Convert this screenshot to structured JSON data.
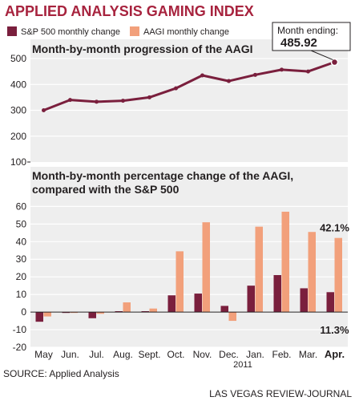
{
  "title": "APPLIED ANALYSIS GAMING INDEX",
  "legend": {
    "sp500": "S&P 500 monthly change",
    "aagi": "AAGI monthly change"
  },
  "colors": {
    "title": "#a7233e",
    "sp500": "#7a1f3d",
    "aagi": "#f2a07b",
    "line": "#7a1f3d",
    "panel_bg": "#eeeeee",
    "grid": "#ffffff"
  },
  "callout": {
    "label": "Month ending:",
    "value": "485.92"
  },
  "source": "SOURCE: Applied Analysis",
  "credit": "LAS VEGAS REVIEW-JOURNAL",
  "year_label": "2011",
  "chart_data": [
    {
      "type": "line",
      "title": "Month-by-month progression of the AAGI",
      "categories": [
        "May",
        "Jun.",
        "Jul.",
        "Aug.",
        "Sept.",
        "Oct.",
        "Nov.",
        "Dec.",
        "Jan.",
        "Feb.",
        "Mar.",
        "Apr."
      ],
      "series": [
        {
          "name": "AAGI",
          "values": [
            300,
            340,
            333,
            337,
            350,
            385,
            435,
            413,
            437,
            457,
            450,
            485.92
          ]
        }
      ],
      "ylim": [
        100,
        500
      ],
      "yticks": [
        100,
        200,
        300,
        400,
        500
      ],
      "grid": true
    },
    {
      "type": "bar",
      "title": "Month-by-month percentage change of the AAGI, compared with the S&P 500",
      "categories": [
        "May",
        "Jun.",
        "Jul.",
        "Aug.",
        "Sept.",
        "Oct.",
        "Nov.",
        "Dec.",
        "Jan.",
        "Feb.",
        "Mar.",
        "Apr."
      ],
      "series": [
        {
          "name": "S&P 500 monthly change",
          "values": [
            -5.5,
            -0.5,
            -3.5,
            0.5,
            0.5,
            9.5,
            10.5,
            3.5,
            15.0,
            21.0,
            13.5,
            11.3
          ]
        },
        {
          "name": "AAGI monthly change",
          "values": [
            -2.5,
            -0.5,
            -1.0,
            5.5,
            2.0,
            34.5,
            51.0,
            -5.0,
            48.5,
            57.0,
            45.5,
            42.1
          ]
        }
      ],
      "ylim": [
        -20,
        62
      ],
      "yticks": [
        -20,
        -10,
        0,
        10,
        20,
        30,
        40,
        50,
        60
      ],
      "grid": true,
      "annotations": [
        {
          "text": "42.1%",
          "category": "Apr.",
          "series": "AAGI monthly change"
        },
        {
          "text": "11.3%",
          "category": "Apr.",
          "series": "S&P 500 monthly change"
        }
      ]
    }
  ]
}
